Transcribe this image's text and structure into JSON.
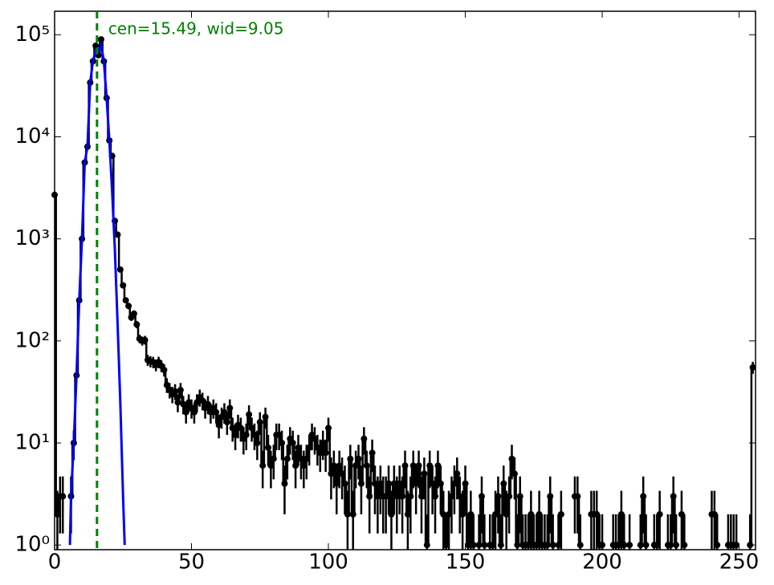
{
  "chart_data": {
    "type": "errorbar-hist",
    "x": [
      0,
      1,
      2,
      3,
      4,
      5,
      6,
      7,
      8,
      9,
      10,
      11,
      12,
      13,
      14,
      15,
      16,
      17,
      18,
      19,
      20,
      21,
      22,
      23,
      24,
      25,
      26,
      27,
      28,
      29,
      30,
      31,
      32,
      33,
      34,
      35,
      36,
      37,
      38,
      39,
      40,
      41,
      42,
      43,
      44,
      45,
      46,
      47,
      48,
      49,
      50,
      51,
      52,
      53,
      54,
      55,
      56,
      57,
      58,
      59,
      60,
      61,
      62,
      63,
      64,
      65,
      66,
      67,
      68,
      69,
      70,
      71,
      72,
      73,
      74,
      75,
      76,
      77,
      78,
      79,
      80,
      81,
      82,
      83,
      84,
      85,
      86,
      87,
      88,
      89,
      90,
      91,
      92,
      93,
      94,
      95,
      96,
      97,
      98,
      99,
      100,
      101,
      102,
      103,
      104,
      105,
      106,
      107,
      108,
      109,
      110,
      111,
      112,
      113,
      114,
      115,
      116,
      117,
      118,
      119,
      120,
      121,
      122,
      123,
      124,
      125,
      126,
      127,
      128,
      129,
      130,
      131,
      132,
      133,
      134,
      135,
      136,
      137,
      138,
      139,
      140,
      141,
      142,
      143,
      144,
      145,
      146,
      147,
      148,
      149,
      150,
      151,
      152,
      153,
      154,
      155,
      156,
      157,
      158,
      159,
      160,
      161,
      162,
      163,
      164,
      165,
      166,
      167,
      168,
      169,
      170,
      171,
      172,
      173,
      174,
      175,
      176,
      177,
      178,
      179,
      180,
      181,
      182,
      183,
      184,
      185,
      186,
      187,
      188,
      189,
      190,
      191,
      192,
      193,
      194,
      195,
      196,
      197,
      198,
      199,
      200,
      201,
      202,
      203,
      204,
      205,
      206,
      207,
      208,
      209,
      210,
      211,
      212,
      213,
      214,
      215,
      216,
      217,
      218,
      219,
      220,
      221,
      222,
      223,
      224,
      225,
      226,
      227,
      228,
      229,
      230,
      231,
      232,
      233,
      234,
      235,
      236,
      237,
      238,
      239,
      240,
      241,
      242,
      243,
      244,
      245,
      246,
      247,
      248,
      249,
      250,
      251,
      252,
      253,
      254,
      255
    ],
    "series": [
      {
        "color": "#000000",
        "values": [
          2700,
          2,
          3,
          3,
          null,
          null,
          3,
          10,
          46,
          250,
          1000,
          5600,
          8000,
          34000,
          55000,
          78000,
          63000,
          90000,
          55000,
          24000,
          9200,
          6500,
          1500,
          1100,
          500,
          350,
          250,
          220,
          170,
          185,
          145,
          105,
          100,
          102,
          65,
          63,
          62,
          58,
          62,
          57,
          52,
          37,
          33,
          30,
          32,
          25,
          33,
          24,
          20,
          25,
          22,
          20,
          25,
          28,
          26,
          22,
          24,
          20,
          22,
          20,
          15,
          18,
          20,
          16,
          22,
          14,
          12,
          15,
          14,
          11,
          12,
          19,
          14,
          12,
          10,
          16,
          6,
          18,
          9,
          6,
          7,
          12,
          12,
          10,
          4,
          7,
          11,
          10,
          6,
          9,
          7,
          6,
          7,
          9,
          12,
          11,
          9,
          8,
          10,
          8,
          14,
          5,
          6,
          4,
          6,
          5,
          4,
          2,
          7,
          2,
          6,
          7,
          4,
          11,
          6,
          3,
          8,
          4,
          3,
          4,
          3,
          3,
          4,
          2,
          4,
          3,
          4,
          3,
          6,
          2,
          3,
          6,
          4,
          6,
          3,
          5,
          1,
          6,
          4,
          3,
          6,
          4,
          2,
          1,
          2,
          3,
          4,
          5,
          3,
          2,
          4,
          1,
          2,
          1,
          null,
          1,
          3,
          1,
          null,
          1,
          1,
          2,
          3,
          1,
          4,
          2,
          3,
          7,
          5,
          1,
          3,
          1,
          1,
          1,
          2,
          1,
          1,
          2,
          1,
          1,
          1,
          3,
          1,
          null,
          1,
          2,
          null,
          null,
          null,
          null,
          3,
          3,
          1,
          null,
          null,
          null,
          2,
          2,
          2,
          1,
          1,
          null,
          null,
          null,
          1,
          1,
          1,
          2,
          1,
          null,
          1,
          null,
          null,
          null,
          1,
          3,
          1,
          null,
          null,
          1,
          1,
          2,
          null,
          null,
          1,
          1,
          3,
          1,
          null,
          2,
          1,
          null,
          null,
          null,
          null,
          null,
          null,
          null,
          null,
          null,
          2,
          2,
          1,
          null,
          null,
          null,
          1,
          1,
          1,
          1,
          null,
          null,
          null,
          null,
          1,
          55
        ],
        "errors": [
          52,
          1.4,
          1.7,
          1.7,
          null,
          null,
          1.7,
          3.2,
          6.8,
          15.8,
          31.6,
          75,
          89,
          184,
          235,
          279,
          251,
          300,
          235,
          155,
          96,
          81,
          39,
          33,
          22,
          19,
          16,
          15,
          13,
          14,
          12,
          10,
          10,
          10,
          8.1,
          7.9,
          7.9,
          7.6,
          7.9,
          7.5,
          7.2,
          6.1,
          5.7,
          5.5,
          5.7,
          5,
          5.7,
          4.9,
          4.5,
          5,
          4.7,
          4.5,
          5,
          5.3,
          5.1,
          4.7,
          4.9,
          4.5,
          4.7,
          4.5,
          3.9,
          4.2,
          4.5,
          4,
          4.7,
          3.7,
          3.5,
          3.9,
          3.7,
          3.3,
          3.5,
          4.4,
          3.7,
          3.5,
          3.2,
          4,
          2.4,
          4.2,
          3,
          2.4,
          2.6,
          3.5,
          3.5,
          3.2,
          2,
          2.6,
          3.3,
          3.2,
          2.4,
          3,
          2.6,
          2.4,
          2.6,
          3,
          3.5,
          3.3,
          3,
          2.8,
          3.2,
          2.8,
          3.7,
          2.2,
          2.4,
          2,
          2.4,
          2.2,
          2,
          1.4,
          2.6,
          1.4,
          2.4,
          2.6,
          2,
          3.3,
          2.4,
          1.7,
          2.8,
          2,
          1.7,
          2,
          1.7,
          1.7,
          2,
          1.4,
          2,
          1.7,
          2,
          1.7,
          2.4,
          1.4,
          1.7,
          2.4,
          2,
          2.4,
          1.7,
          2.2,
          1,
          2.4,
          2,
          1.7,
          2.4,
          2,
          1.4,
          1,
          1.4,
          1.7,
          2,
          2.2,
          1.7,
          1.4,
          2,
          1,
          1.4,
          1,
          null,
          1,
          1.7,
          1,
          null,
          1,
          1,
          1.4,
          1.7,
          1,
          2,
          1.4,
          1.7,
          2.6,
          2.2,
          1,
          1.7,
          1,
          1,
          1,
          1.4,
          1,
          1,
          1.4,
          1,
          1,
          1,
          1.7,
          1,
          null,
          1,
          1.4,
          null,
          null,
          null,
          null,
          1.7,
          1.7,
          1,
          null,
          null,
          null,
          1.4,
          1.4,
          1.4,
          1,
          1,
          null,
          null,
          null,
          1,
          1,
          1,
          1.4,
          1,
          null,
          1,
          null,
          null,
          null,
          1,
          1.7,
          1,
          null,
          null,
          1,
          1,
          1.4,
          null,
          null,
          1,
          1,
          1.7,
          1,
          null,
          1.4,
          1,
          null,
          null,
          null,
          null,
          null,
          null,
          null,
          null,
          null,
          1.4,
          1.4,
          1,
          null,
          null,
          null,
          1,
          1,
          1,
          1,
          null,
          null,
          null,
          null,
          1,
          7.4
        ]
      }
    ],
    "fit": {
      "color": "#0000ff",
      "x": [
        5.6,
        6,
        7,
        8,
        9,
        10,
        11,
        12,
        13,
        14,
        15,
        16,
        17,
        18,
        19,
        20,
        21,
        22,
        23,
        24,
        25,
        25.6
      ],
      "values": [
        1,
        3,
        10,
        46,
        250,
        1000,
        5600,
        8000,
        34000,
        55000,
        70000,
        70000,
        80000,
        55000,
        24000,
        9200,
        3000,
        800,
        150,
        25,
        3,
        1
      ]
    },
    "vline": {
      "x": 15.49,
      "color": "#008000",
      "text": "cen=15.49, wid=9.05"
    },
    "xlim": [
      0,
      256
    ],
    "ylim": [
      0.9,
      170000
    ],
    "log_y": true,
    "xticks": [
      0,
      50,
      100,
      150,
      200,
      250
    ],
    "yticks": [
      {
        "value": 1,
        "label": "10⁰"
      },
      {
        "value": 10,
        "label": "10¹"
      },
      {
        "value": 100,
        "label": "10²"
      },
      {
        "value": 1000,
        "label": "10³"
      },
      {
        "value": 10000,
        "label": "10⁴"
      },
      {
        "value": 100000,
        "label": "10⁵"
      }
    ]
  }
}
